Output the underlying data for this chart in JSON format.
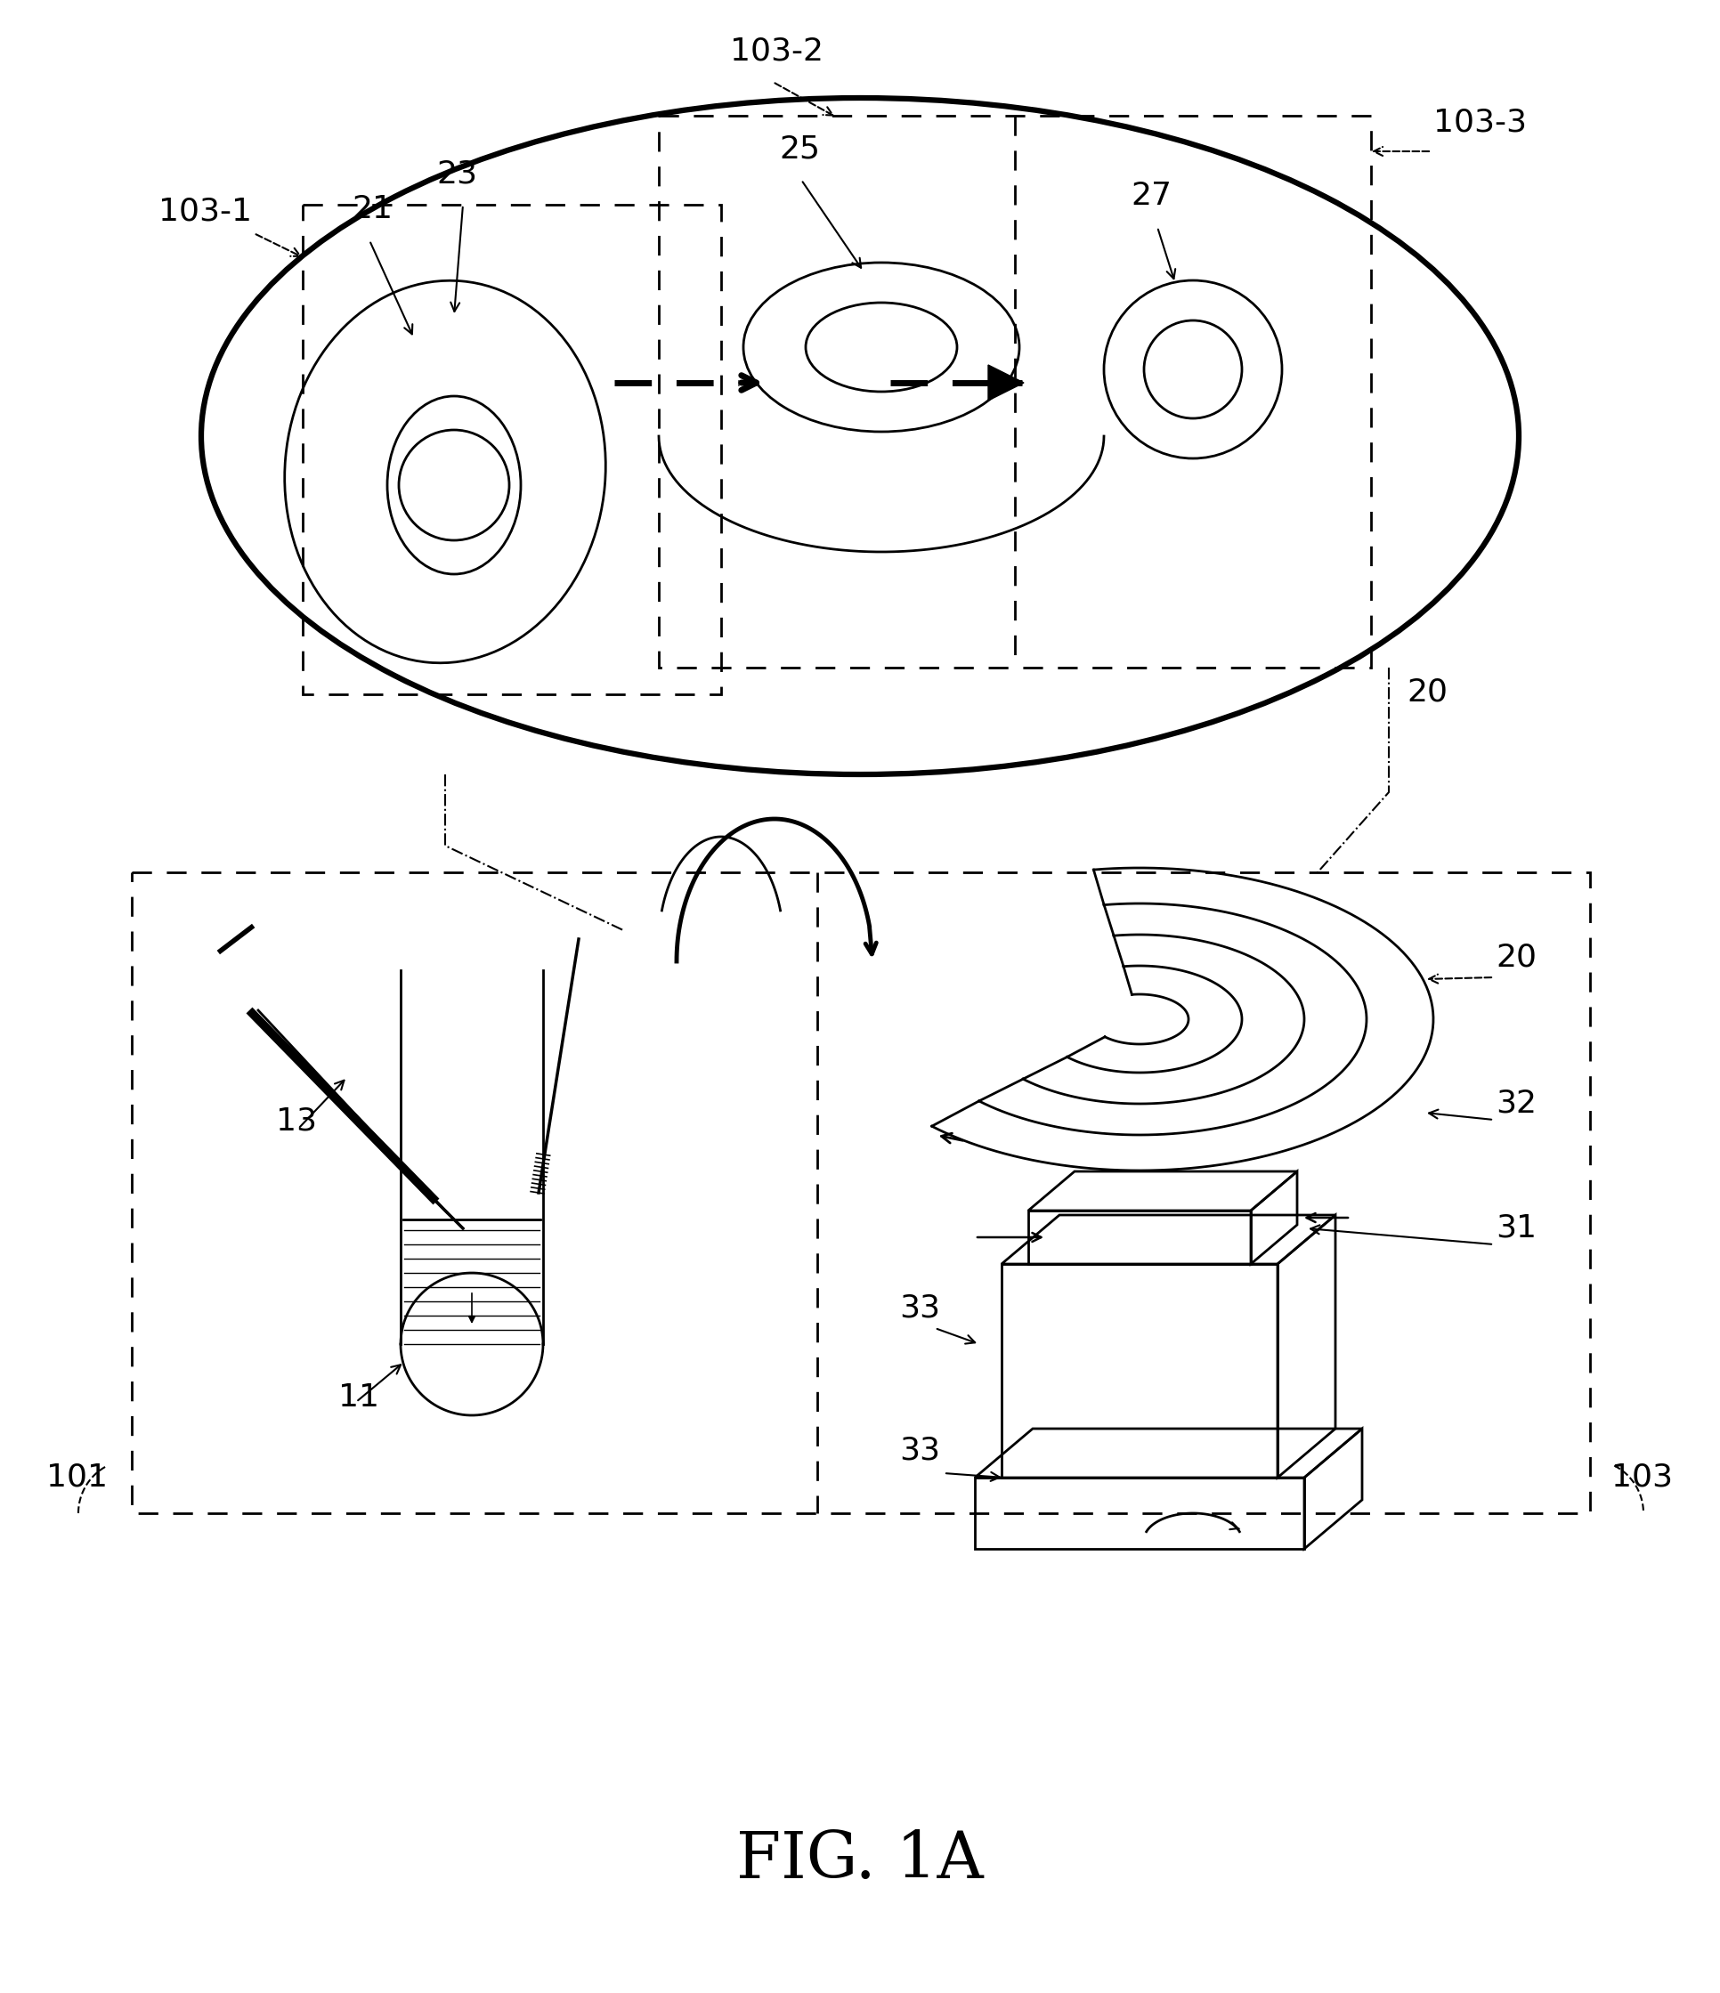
{
  "bg_color": "#ffffff",
  "labels": {
    "fig": "FIG. 1A",
    "n20": "20",
    "n21": "21",
    "n23": "23",
    "n25": "25",
    "n27": "27",
    "n11": "11",
    "n13": "13",
    "n31": "31",
    "n32": "32",
    "n33a": "33",
    "n33b": "33",
    "n101": "101",
    "n103": "103",
    "n103_1": "103-1",
    "n103_2": "103-2",
    "n103_3": "103-3"
  }
}
